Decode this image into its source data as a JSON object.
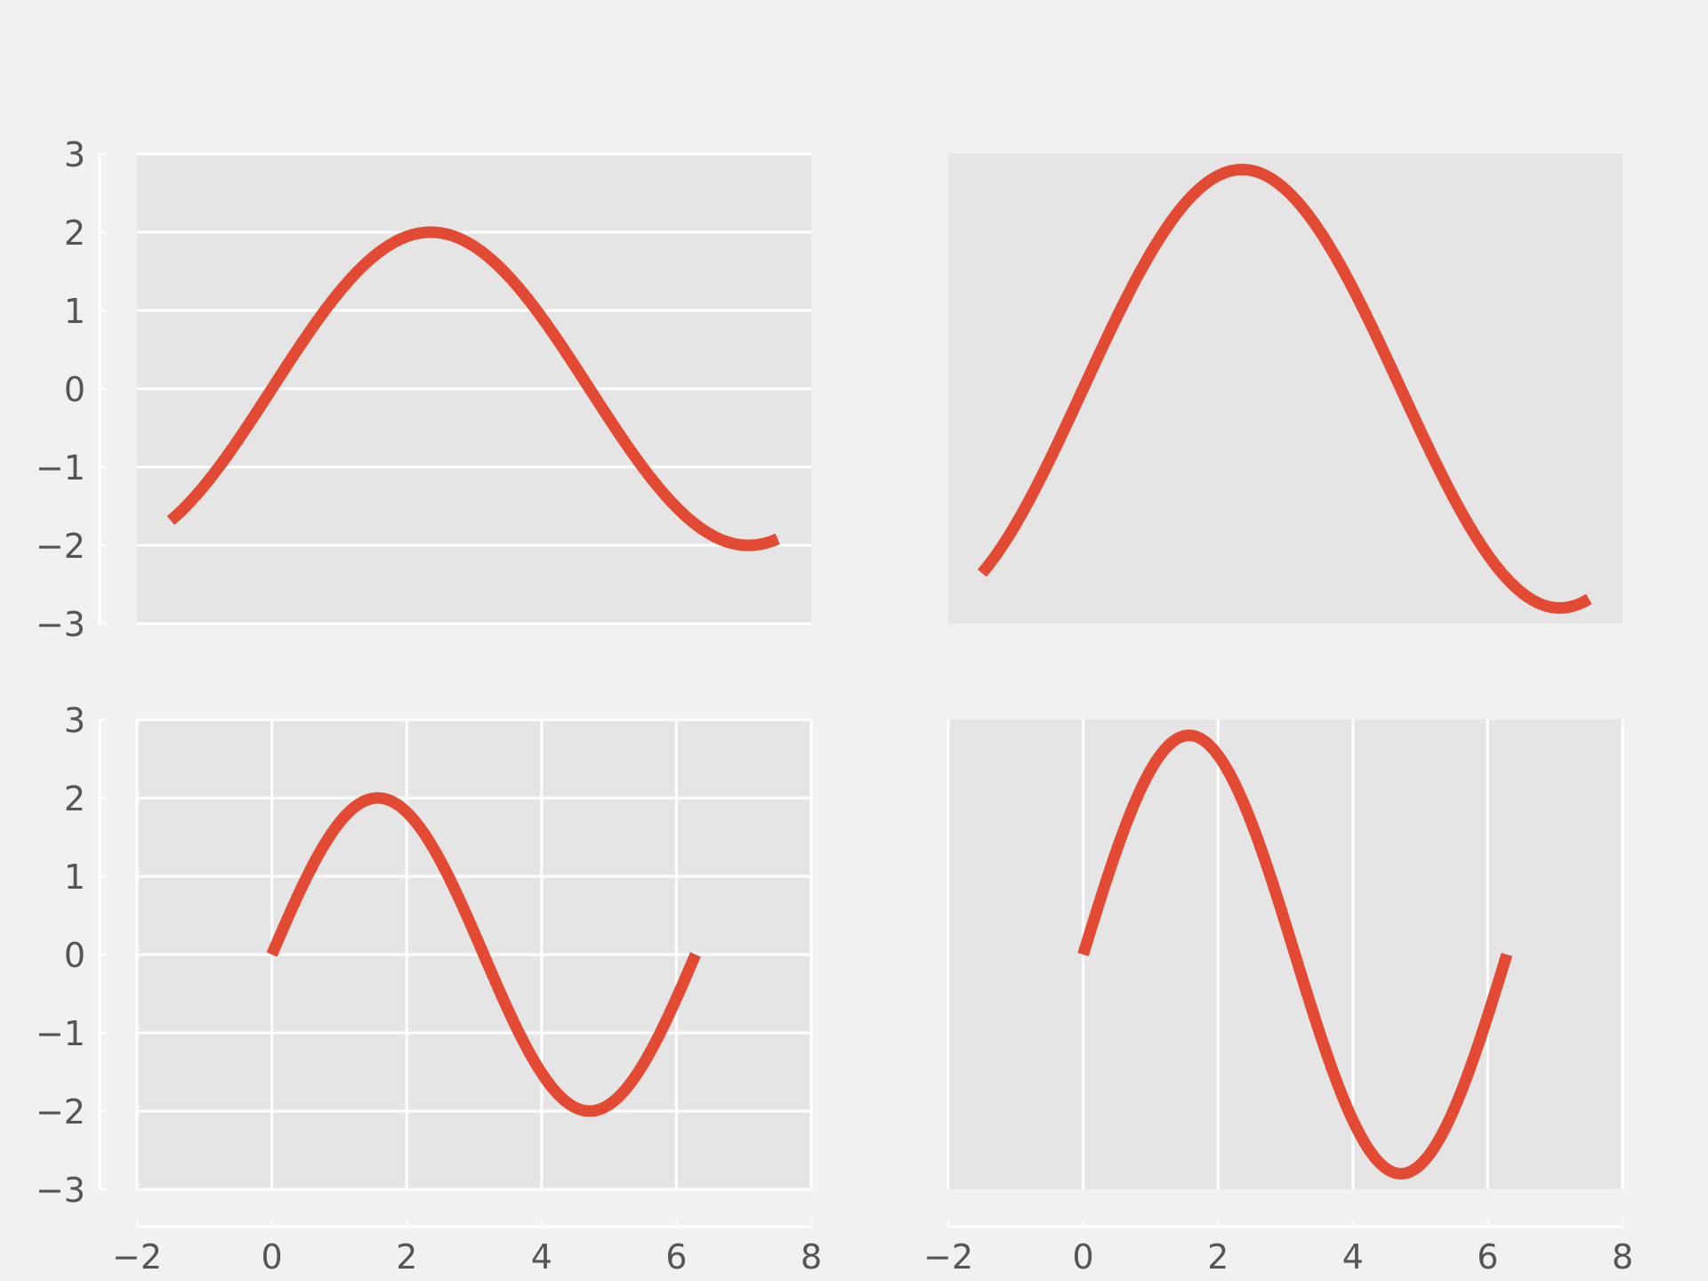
{
  "figure": {
    "background": "#f1f1f1"
  },
  "style": {
    "axes_face": "#e5e5e5",
    "grid": "#ffffff",
    "line": "#e24a33",
    "tick_text": "#555555"
  },
  "chart_data": [
    {
      "type": "line",
      "title": "",
      "xlabel": "",
      "ylabel": "",
      "xlim": [
        -2,
        8
      ],
      "ylim": [
        -3,
        3
      ],
      "grid": {
        "x": false,
        "y": true
      },
      "show_x_ticks": false,
      "show_y_ticks": true,
      "y_ticks": [
        3,
        2,
        1,
        0,
        -1,
        -2,
        -3
      ],
      "y_tick_labels": [
        "3",
        "2",
        "1",
        "0",
        "−1",
        "−2",
        "−3"
      ],
      "series": [
        {
          "function": "2*sin(x/1.5)",
          "x_range": [
            -1.5,
            7.5
          ],
          "amplitude": 2,
          "period_factor": 1.5,
          "shift": 0
        }
      ]
    },
    {
      "type": "line",
      "title": "",
      "xlabel": "",
      "ylabel": "",
      "xlim": [
        -2,
        8
      ],
      "ylim": [
        -3,
        3
      ],
      "grid": {
        "x": false,
        "y": false
      },
      "show_x_ticks": false,
      "show_y_ticks": false,
      "series": [
        {
          "function": "2.8*sin(x/1.5)",
          "x_range": [
            -1.5,
            7.5
          ],
          "amplitude": 2.8,
          "period_factor": 1.5,
          "shift": 0
        }
      ]
    },
    {
      "type": "line",
      "title": "",
      "xlabel": "",
      "ylabel": "",
      "xlim": [
        -2,
        8
      ],
      "ylim": [
        -3,
        3
      ],
      "grid": {
        "x": true,
        "y": true
      },
      "show_x_ticks": true,
      "show_y_ticks": true,
      "y_ticks": [
        3,
        2,
        1,
        0,
        -1,
        -2,
        -3
      ],
      "y_tick_labels": [
        "3",
        "2",
        "1",
        "0",
        "−1",
        "−2",
        "−3"
      ],
      "x_ticks": [
        -2,
        0,
        2,
        4,
        6,
        8
      ],
      "x_tick_labels": [
        "−2",
        "0",
        "2",
        "4",
        "6",
        "8"
      ],
      "series": [
        {
          "function": "2*sin(x)",
          "x_range": [
            0,
            6.2832
          ],
          "amplitude": 2,
          "period_factor": 1,
          "shift": 0
        }
      ]
    },
    {
      "type": "line",
      "title": "",
      "xlabel": "",
      "ylabel": "",
      "xlim": [
        -2,
        8
      ],
      "ylim": [
        -3,
        3
      ],
      "grid": {
        "x": true,
        "y": false
      },
      "show_x_ticks": true,
      "show_y_ticks": false,
      "x_ticks": [
        -2,
        0,
        2,
        4,
        6,
        8
      ],
      "x_tick_labels": [
        "−2",
        "0",
        "2",
        "4",
        "6",
        "8"
      ],
      "series": [
        {
          "function": "2.8*sin(x)",
          "x_range": [
            0,
            6.2832
          ],
          "amplitude": 2.8,
          "period_factor": 1,
          "shift": 0
        }
      ]
    }
  ]
}
